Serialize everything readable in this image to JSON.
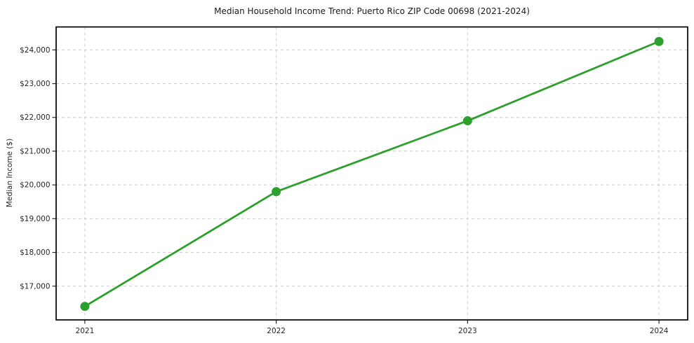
{
  "chart_data": {
    "type": "line",
    "title": "Median Household Income Trend: Puerto Rico ZIP Code 00698 (2021-2024)",
    "xlabel": "",
    "ylabel": "Median Income ($)",
    "x": [
      2021,
      2022,
      2023,
      2024
    ],
    "x_tick_labels": [
      "2021",
      "2022",
      "2023",
      "2024"
    ],
    "values": [
      16400,
      19800,
      21900,
      24250
    ],
    "yticks": [
      {
        "value": 17000,
        "label": "$17,000"
      },
      {
        "value": 18000,
        "label": "$18,000"
      },
      {
        "value": 19000,
        "label": "$19,000"
      },
      {
        "value": 20000,
        "label": "$20,000"
      },
      {
        "value": 21000,
        "label": "$21,000"
      },
      {
        "value": 22000,
        "label": "$22,000"
      },
      {
        "value": 23000,
        "label": "$23,000"
      },
      {
        "value": 24000,
        "label": "$24,000"
      }
    ],
    "ylim": [
      16000,
      24680
    ],
    "xlim": [
      2020.85,
      2024.15
    ],
    "grid": true,
    "grid_style": "dashed",
    "legend": "none",
    "line_color": "#2ca02c",
    "marker": "circle",
    "grid_color": "#cccccc",
    "text_color": "#262626",
    "background": "#ffffff"
  }
}
